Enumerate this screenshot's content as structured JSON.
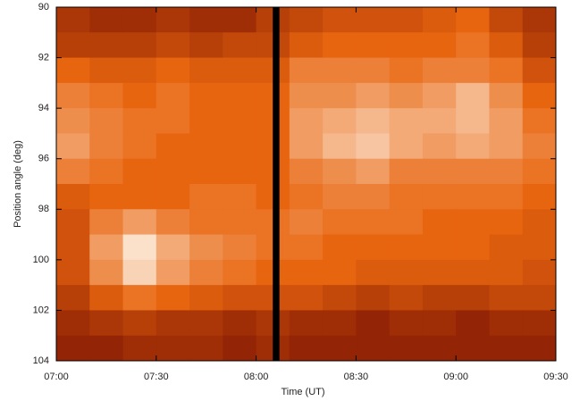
{
  "chart_data": {
    "type": "heatmap",
    "xlabel": "Time (UT)",
    "ylabel": "Position angle (deg)",
    "x": [
      "07:00",
      "07:10",
      "07:20",
      "07:30",
      "07:40",
      "07:50",
      "08:00",
      "08:10",
      "08:20",
      "08:30",
      "08:40",
      "08:50",
      "09:00",
      "09:10",
      "09:20"
    ],
    "y": [
      90,
      91,
      92,
      93,
      94,
      95,
      96,
      97,
      98,
      99,
      100,
      101,
      102,
      103
    ],
    "xlim": [
      "07:00",
      "09:30"
    ],
    "ylim": [
      104,
      90
    ],
    "xticks": [
      "07:00",
      "07:30",
      "08:00",
      "08:30",
      "09:00",
      "09:30"
    ],
    "yticks": [
      90,
      92,
      94,
      96,
      98,
      100,
      102,
      104
    ],
    "zlim": [
      0,
      1
    ],
    "colormap": [
      "#6e0800",
      "#e8650f",
      "#fdeedf"
    ],
    "gap": [
      "08:05",
      "08:07"
    ],
    "gap_color": "#000000",
    "z": [
      [
        0.25,
        0.2,
        0.2,
        0.25,
        0.2,
        0.2,
        0.3,
        0.35,
        0.4,
        0.4,
        0.4,
        0.45,
        0.5,
        0.35,
        0.25
      ],
      [
        0.3,
        0.3,
        0.3,
        0.35,
        0.3,
        0.35,
        0.35,
        0.45,
        0.5,
        0.5,
        0.5,
        0.5,
        0.55,
        0.45,
        0.3
      ],
      [
        0.5,
        0.45,
        0.45,
        0.5,
        0.45,
        0.45,
        0.45,
        0.6,
        0.6,
        0.6,
        0.55,
        0.6,
        0.6,
        0.55,
        0.4
      ],
      [
        0.6,
        0.55,
        0.5,
        0.55,
        0.5,
        0.5,
        0.5,
        0.65,
        0.65,
        0.7,
        0.65,
        0.7,
        0.8,
        0.65,
        0.5
      ],
      [
        0.65,
        0.6,
        0.55,
        0.55,
        0.5,
        0.5,
        0.5,
        0.7,
        0.75,
        0.8,
        0.75,
        0.75,
        0.8,
        0.7,
        0.55
      ],
      [
        0.7,
        0.6,
        0.55,
        0.5,
        0.5,
        0.5,
        0.5,
        0.7,
        0.8,
        0.85,
        0.75,
        0.7,
        0.75,
        0.7,
        0.6
      ],
      [
        0.6,
        0.55,
        0.5,
        0.5,
        0.5,
        0.5,
        0.5,
        0.6,
        0.65,
        0.7,
        0.6,
        0.6,
        0.6,
        0.6,
        0.55
      ],
      [
        0.45,
        0.5,
        0.5,
        0.5,
        0.55,
        0.55,
        0.5,
        0.55,
        0.6,
        0.6,
        0.55,
        0.55,
        0.55,
        0.55,
        0.5
      ],
      [
        0.4,
        0.6,
        0.7,
        0.6,
        0.55,
        0.55,
        0.55,
        0.6,
        0.55,
        0.55,
        0.55,
        0.5,
        0.5,
        0.5,
        0.45
      ],
      [
        0.4,
        0.7,
        0.95,
        0.75,
        0.65,
        0.6,
        0.55,
        0.55,
        0.5,
        0.5,
        0.5,
        0.5,
        0.5,
        0.45,
        0.45
      ],
      [
        0.4,
        0.65,
        0.9,
        0.7,
        0.6,
        0.55,
        0.5,
        0.5,
        0.5,
        0.45,
        0.45,
        0.45,
        0.45,
        0.45,
        0.4
      ],
      [
        0.3,
        0.45,
        0.55,
        0.5,
        0.45,
        0.4,
        0.4,
        0.4,
        0.35,
        0.3,
        0.35,
        0.3,
        0.3,
        0.35,
        0.35
      ],
      [
        0.2,
        0.25,
        0.3,
        0.25,
        0.25,
        0.2,
        0.25,
        0.2,
        0.2,
        0.15,
        0.2,
        0.2,
        0.15,
        0.2,
        0.2
      ],
      [
        0.15,
        0.15,
        0.2,
        0.2,
        0.2,
        0.15,
        0.2,
        0.15,
        0.15,
        0.15,
        0.15,
        0.15,
        0.15,
        0.15,
        0.15
      ]
    ]
  }
}
